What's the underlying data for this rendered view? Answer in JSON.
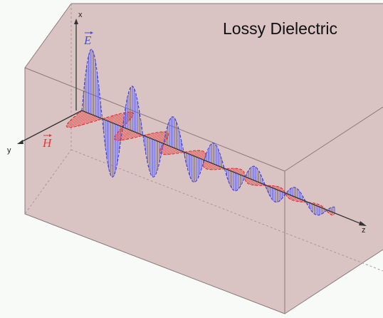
{
  "title": "Lossy Dielectric",
  "axes": {
    "x": "x",
    "y": "y",
    "z": "z"
  },
  "fields": {
    "electric": "E",
    "magnetic": "H"
  }
}
